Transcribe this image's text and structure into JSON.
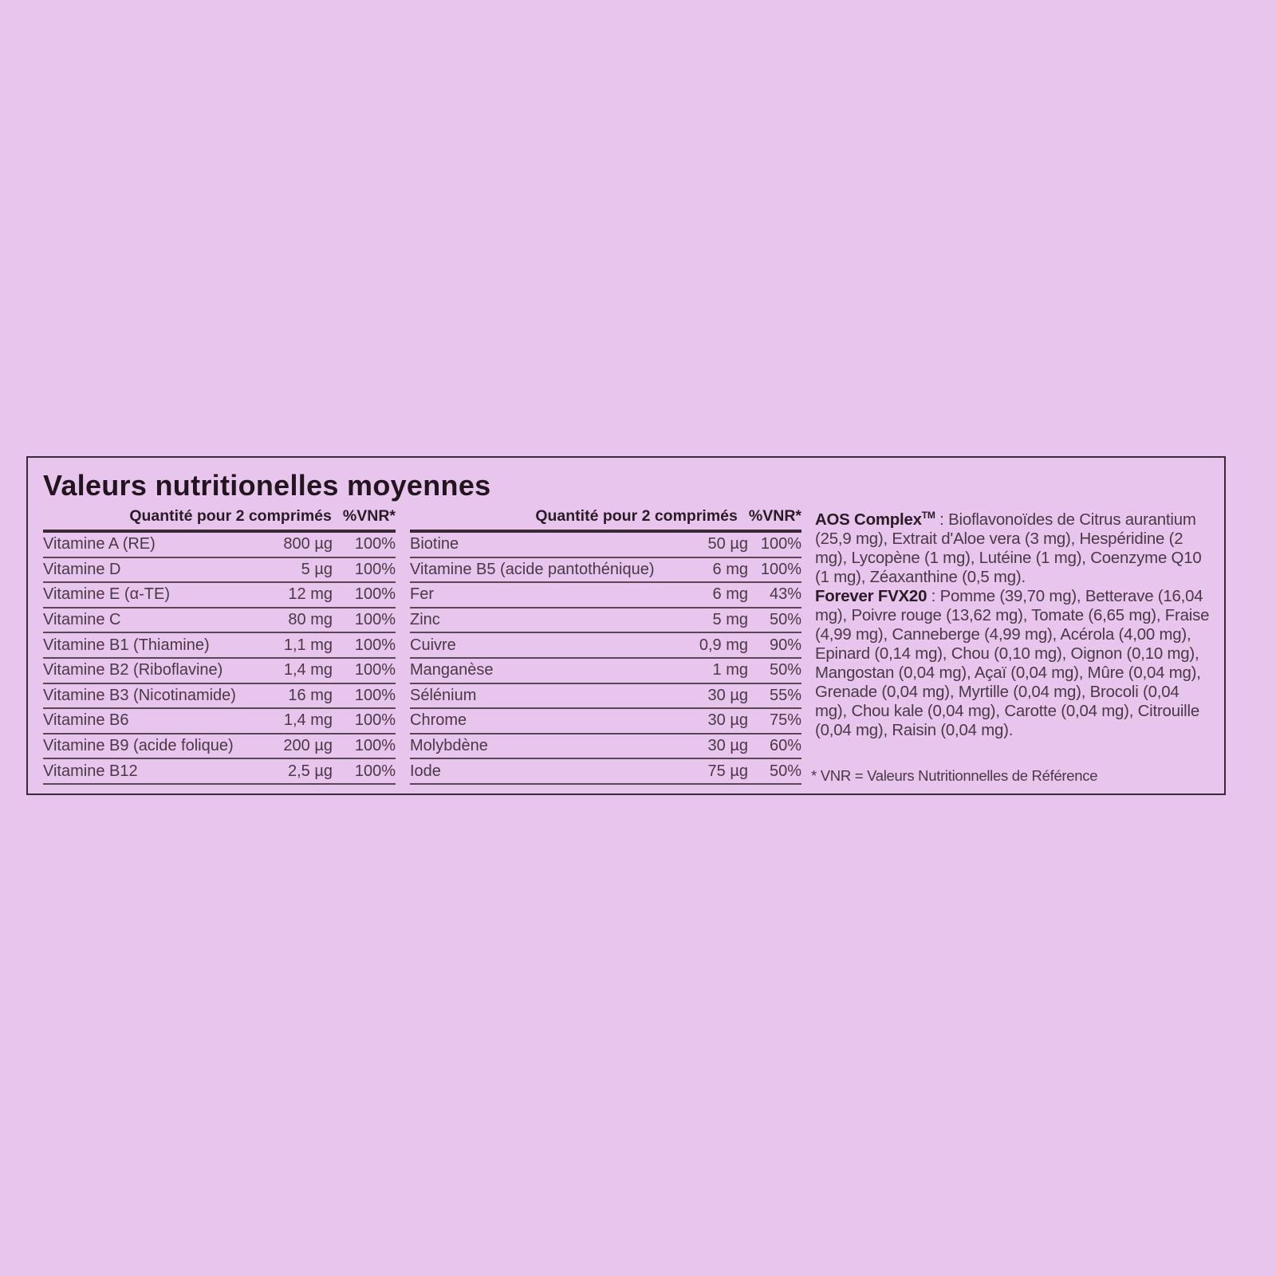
{
  "title": "Valeurs nutritionelles moyennes",
  "table_left": {
    "header_qty": "Quantité pour 2 comprimés",
    "header_pct": "%VNR*",
    "rows": [
      {
        "name": "Vitamine A (RE)",
        "amount": "800 µg",
        "pct": "100%"
      },
      {
        "name": "Vitamine D",
        "amount": "5 µg",
        "pct": "100%"
      },
      {
        "name": "Vitamine E (α-TE)",
        "amount": "12 mg",
        "pct": "100%"
      },
      {
        "name": "Vitamine C",
        "amount": "80 mg",
        "pct": "100%"
      },
      {
        "name": "Vitamine B1 (Thiamine)",
        "amount": "1,1 mg",
        "pct": "100%"
      },
      {
        "name": "Vitamine B2 (Riboflavine)",
        "amount": "1,4 mg",
        "pct": "100%"
      },
      {
        "name": "Vitamine B3 (Nicotinamide)",
        "amount": "16 mg",
        "pct": "100%"
      },
      {
        "name": "Vitamine B6",
        "amount": "1,4 mg",
        "pct": "100%"
      },
      {
        "name": "Vitamine B9 (acide folique)",
        "amount": "200 µg",
        "pct": "100%"
      },
      {
        "name": "Vitamine B12",
        "amount": "2,5 µg",
        "pct": "100%"
      }
    ]
  },
  "table_right": {
    "header_qty": "Quantité pour 2 comprimés",
    "header_pct": "%VNR*",
    "rows": [
      {
        "name": "Biotine",
        "amount": "50 µg",
        "pct": "100%"
      },
      {
        "name": "Vitamine B5 (acide pantothénique)",
        "amount": "6 mg",
        "pct": "100%"
      },
      {
        "name": "Fer",
        "amount": "6 mg",
        "pct": "43%"
      },
      {
        "name": "Zinc",
        "amount": "5 mg",
        "pct": "50%"
      },
      {
        "name": "Cuivre",
        "amount": "0,9 mg",
        "pct": "90%"
      },
      {
        "name": "Manganèse",
        "amount": "1 mg",
        "pct": "50%"
      },
      {
        "name": "Sélénium",
        "amount": "30 µg",
        "pct": "55%"
      },
      {
        "name": "Chrome",
        "amount": "30 µg",
        "pct": "75%"
      },
      {
        "name": "Molybdène",
        "amount": "30 µg",
        "pct": "60%"
      },
      {
        "name": "Iode",
        "amount": "75 µg",
        "pct": "50%"
      }
    ]
  },
  "side": {
    "aos_label": "AOS Complex",
    "aos_tm": "TM",
    "aos_text": " : Bioflavonoïdes de Citrus aurantium (25,9 mg), Extrait d'Aloe vera (3 mg), Hespéridine (2 mg), Lycopène (1 mg), Lutéine (1 mg), Coenzyme Q10 (1 mg), Zéaxanthine (0,5 mg).",
    "fvx_label": "Forever FVX20",
    "fvx_text": " : Pomme (39,70 mg), Betterave (16,04 mg), Poivre rouge (13,62 mg), Tomate (6,65 mg), Fraise (4,99 mg), Canneberge (4,99 mg), Acérola (4,00 mg), Epinard (0,14 mg), Chou (0,10 mg), Oignon (0,10 mg), Mangostan (0,04 mg), Açaï (0,04 mg), Mûre (0,04 mg), Grenade (0,04 mg), Myrtille (0,04 mg), Brocoli (0,04 mg), Chou kale (0,04 mg), Carotte (0,04 mg), Citrouille (0,04 mg), Raisin (0,04 mg).",
    "footnote": "* VNR = Valeurs Nutritionnelles de Référence"
  },
  "colors": {
    "background": "#e8c5ec",
    "text": "#3a2a37"
  }
}
